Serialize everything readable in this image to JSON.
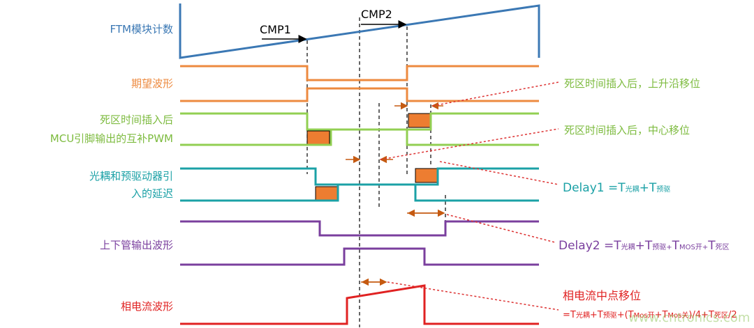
{
  "colors": {
    "blue": "#3b78b4",
    "orange": "#ed8a3f",
    "green": "#92cf52",
    "teal": "#1ba1a6",
    "purple": "#7a3f9e",
    "red": "#e02222"
  },
  "left_labels": {
    "ftm": "FTM模块计数",
    "expected": "期望波形",
    "deadtime_1": "死区时间插入后",
    "deadtime_2": "MCU引脚输出的互补PWM",
    "delay_1": "光耦和预驱动器引",
    "delay_2": "入的延迟",
    "output": "上下管输出波形",
    "current": "相电流波形"
  },
  "markers": {
    "cmp1": "CMP1",
    "cmp2": "CMP2"
  },
  "right_labels": {
    "rise_shift": "死区时间插入后，上升沿移位",
    "center_shift": "死区时间插入后，中心移位",
    "delay1": {
      "main": "Delay1 =T",
      "s1": "光耦",
      "plus": "+T",
      "s2": "预驱"
    },
    "delay2": {
      "main": "Delay2 =T",
      "s1": "光耦",
      "p1": "+T",
      "s2": "预驱+",
      "p2": "T",
      "s3": "MOS开+",
      "p3": "T",
      "s4": "死区"
    },
    "current_shift": "相电流中点移位",
    "current_formula": {
      "a": "=T",
      "s1": "光耦",
      "b": "+T",
      "s2": "预驱",
      "c": "+(T",
      "s3": "Mos开",
      "d": "+T",
      "s4": "Mos关",
      "e": ")/4+T",
      "s5": "死区",
      "f": "/2"
    }
  },
  "watermark": "www.cntronics.com"
}
